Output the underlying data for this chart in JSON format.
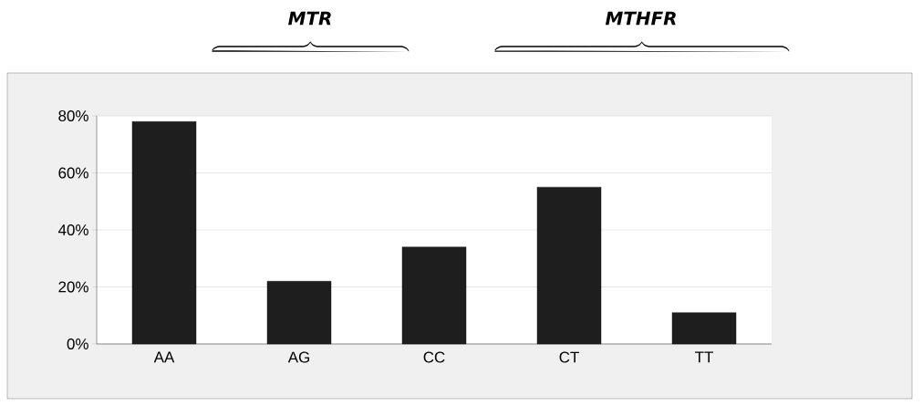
{
  "chart_data": {
    "type": "bar",
    "categories": [
      "AA",
      "AG",
      "CC",
      "CT",
      "TT"
    ],
    "values": [
      78,
      22,
      34,
      55,
      11
    ],
    "color": "#1e1e1e",
    "ylim": [
      0,
      80
    ],
    "yticks": [
      {
        "value": 0,
        "label": "0%"
      },
      {
        "value": 20,
        "label": "20%"
      },
      {
        "value": 40,
        "label": "40%"
      },
      {
        "value": 60,
        "label": "60%"
      },
      {
        "value": 80,
        "label": "80%"
      }
    ],
    "grid": "y",
    "annotations": [
      "MTR",
      "MTHFR"
    ]
  }
}
